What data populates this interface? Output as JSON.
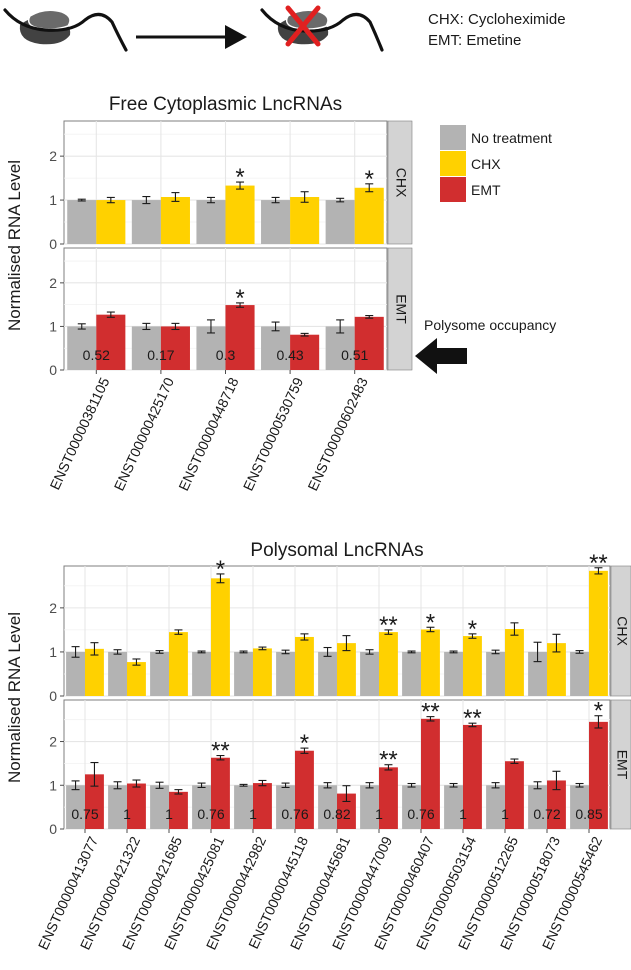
{
  "colors": {
    "no_treatment": "#b3b3b3",
    "chx": "#ffd100",
    "emt": "#d12e2f"
  },
  "diagram": {
    "legend_lines": [
      "CHX: Cycloheximide",
      "EMT: Emetine"
    ],
    "ribosome_icon": "ribosome-icon",
    "blocked_ribosome_icon": "ribosome-crossed-icon",
    "arrow_icon": "right-arrow-icon"
  },
  "legend": {
    "entries": [
      {
        "label": "No treatment",
        "color_key": "no_treatment"
      },
      {
        "label": "CHX",
        "color_key": "chx"
      },
      {
        "label": "EMT",
        "color_key": "emt"
      }
    ]
  },
  "annotation": {
    "text": "Polysome occupancy",
    "icon": "left-arrow-icon"
  },
  "chart_data": [
    {
      "type": "bar",
      "title": "Free Cytoplasmic LncRNAs",
      "ylabel": "Normalised RNA Level",
      "xlabel": "",
      "ylim": [
        0,
        2.8
      ],
      "yticks": [
        0,
        1,
        2
      ],
      "categories": [
        "ENST00000381105",
        "ENST00000425170",
        "ENST00000448718",
        "ENST00000530759",
        "ENST00000602483"
      ],
      "facets": [
        {
          "strip": "CHX",
          "series": [
            {
              "name": "No treatment",
              "color_key": "no_treatment",
              "values": [
                1.0,
                1.0,
                1.0,
                1.0,
                1.0
              ],
              "errors": [
                0.02,
                0.08,
                0.06,
                0.06,
                0.04
              ]
            },
            {
              "name": "CHX",
              "color_key": "chx",
              "values": [
                1.0,
                1.07,
                1.33,
                1.07,
                1.28
              ],
              "errors": [
                0.06,
                0.1,
                0.08,
                0.12,
                0.09
              ]
            }
          ],
          "significance": [
            "",
            "",
            "*",
            "",
            "*"
          ],
          "occupancy": []
        },
        {
          "strip": "EMT",
          "series": [
            {
              "name": "No treatment",
              "color_key": "no_treatment",
              "values": [
                1.0,
                1.0,
                1.0,
                1.0,
                1.0
              ],
              "errors": [
                0.06,
                0.07,
                0.15,
                0.1,
                0.15
              ]
            },
            {
              "name": "EMT",
              "color_key": "emt",
              "values": [
                1.27,
                1.0,
                1.49,
                0.81,
                1.22
              ],
              "errors": [
                0.06,
                0.07,
                0.05,
                0.03,
                0.03
              ]
            }
          ],
          "significance": [
            "",
            "",
            "*",
            "",
            ""
          ],
          "occupancy": [
            "0.52",
            "0.17",
            "0.3",
            "0.43",
            "0.51"
          ]
        }
      ]
    },
    {
      "type": "bar",
      "title": "Polysomal LncRNAs",
      "ylabel": "Normalised RNA Level",
      "xlabel": "",
      "ylim": [
        0,
        2.95
      ],
      "yticks": [
        0,
        1,
        2
      ],
      "categories": [
        "ENST00000413077",
        "ENST00000421322",
        "ENST00000421685",
        "ENST00000425081",
        "ENST00000442982",
        "ENST00000445118",
        "ENST00000445681",
        "ENST00000447009",
        "ENST00000460407",
        "ENST00000503154",
        "ENST00000512265",
        "ENST00000518073",
        "ENST00000545462"
      ],
      "facets": [
        {
          "strip": "CHX",
          "series": [
            {
              "name": "No treatment",
              "color_key": "no_treatment",
              "values": [
                1.0,
                1.0,
                1.0,
                1.0,
                1.0,
                1.0,
                1.0,
                1.0,
                1.0,
                1.0,
                1.0,
                1.0,
                1.0
              ],
              "errors": [
                0.12,
                0.05,
                0.03,
                0.02,
                0.02,
                0.04,
                0.1,
                0.05,
                0.02,
                0.02,
                0.04,
                0.22,
                0.03
              ]
            },
            {
              "name": "CHX",
              "color_key": "chx",
              "values": [
                1.07,
                0.77,
                1.45,
                2.67,
                1.08,
                1.34,
                1.2,
                1.45,
                1.51,
                1.36,
                1.52,
                1.2,
                2.84
              ],
              "errors": [
                0.14,
                0.07,
                0.05,
                0.1,
                0.03,
                0.07,
                0.17,
                0.05,
                0.05,
                0.05,
                0.14,
                0.2,
                0.07
              ]
            }
          ],
          "significance": [
            "",
            "",
            "",
            "*",
            "",
            "",
            "",
            "**",
            "*",
            "*",
            "",
            "",
            "**"
          ],
          "occupancy": []
        },
        {
          "strip": "EMT",
          "series": [
            {
              "name": "No treatment",
              "color_key": "no_treatment",
              "values": [
                1.0,
                1.0,
                1.0,
                1.0,
                1.0,
                1.0,
                1.0,
                1.0,
                1.0,
                1.0,
                1.0,
                1.0,
                1.0
              ],
              "errors": [
                0.1,
                0.08,
                0.07,
                0.05,
                0.02,
                0.05,
                0.06,
                0.06,
                0.04,
                0.04,
                0.06,
                0.08,
                0.04
              ]
            },
            {
              "name": "EMT",
              "color_key": "emt",
              "values": [
                1.25,
                1.04,
                0.85,
                1.63,
                1.05,
                1.79,
                0.81,
                1.41,
                2.52,
                2.38,
                1.55,
                1.11,
                2.45
              ],
              "errors": [
                0.27,
                0.08,
                0.05,
                0.05,
                0.06,
                0.06,
                0.18,
                0.06,
                0.05,
                0.04,
                0.05,
                0.21,
                0.14
              ]
            }
          ],
          "significance": [
            "",
            "",
            "",
            "**",
            "",
            "*",
            "",
            "**",
            "**",
            "**",
            "",
            "",
            "*"
          ],
          "occupancy": [
            "0.75",
            "1",
            "1",
            "0.76",
            "1",
            "0.76",
            "0.82",
            "1",
            "0.76",
            "1",
            "1",
            "0.72",
            "0.85"
          ]
        }
      ]
    }
  ]
}
